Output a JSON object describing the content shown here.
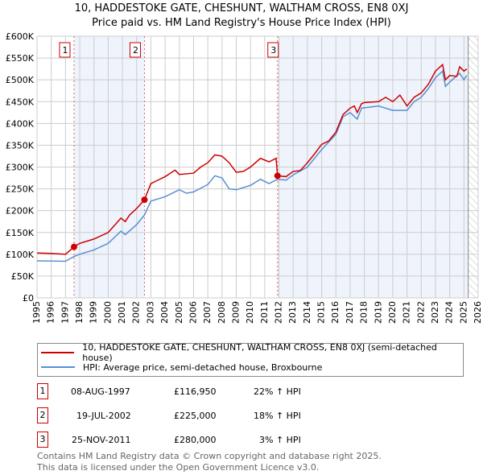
{
  "title_line1": "10, HADDESTOKE GATE, CHESHUNT, WALTHAM CROSS, EN8 0XJ",
  "title_line2": "Price paid vs. HM Land Registry's House Price Index (HPI)",
  "chart_data": {
    "type": "line",
    "xlim": [
      1995,
      2026
    ],
    "ylim": [
      0,
      600000
    ],
    "x_ticks": [
      "1995",
      "1996",
      "1997",
      "1998",
      "1999",
      "2000",
      "2001",
      "2002",
      "2003",
      "2004",
      "2005",
      "2006",
      "2007",
      "2008",
      "2009",
      "2010",
      "2011",
      "2012",
      "2013",
      "2014",
      "2015",
      "2016",
      "2017",
      "2018",
      "2019",
      "2020",
      "2021",
      "2022",
      "2023",
      "2024",
      "2025",
      "2026"
    ],
    "y_ticks": [
      {
        "v": 0,
        "label": "£0"
      },
      {
        "v": 50000,
        "label": "£50K"
      },
      {
        "v": 100000,
        "label": "£100K"
      },
      {
        "v": 150000,
        "label": "£150K"
      },
      {
        "v": 200000,
        "label": "£200K"
      },
      {
        "v": 250000,
        "label": "£250K"
      },
      {
        "v": 300000,
        "label": "£300K"
      },
      {
        "v": 350000,
        "label": "£350K"
      },
      {
        "v": 400000,
        "label": "£400K"
      },
      {
        "v": 450000,
        "label": "£450K"
      },
      {
        "v": 500000,
        "label": "£500K"
      },
      {
        "v": 550000,
        "label": "£550K"
      },
      {
        "v": 600000,
        "label": "£600K"
      }
    ],
    "grid": true,
    "future_hatch_from": 2025.3,
    "series": [
      {
        "name": "10, HADDESTOKE GATE, CHESHUNT, WALTHAM CROSS, EN8 0XJ (semi-detached house)",
        "color": "#cc0000",
        "x": [
          1995,
          1996,
          1997,
          1997.6,
          1998,
          1999,
          2000,
          2000.9,
          2001.2,
          2001.5,
          2002,
          2002.55,
          2003,
          2003.5,
          2004,
          2004.7,
          2005,
          2006,
          2006.5,
          2007,
          2007.5,
          2008,
          2008.5,
          2009,
          2009.5,
          2010,
          2010.7,
          2011.3,
          2011.8,
          2011.9,
          2012.5,
          2013,
          2013.5,
          2014,
          2014.5,
          2015,
          2015.5,
          2016,
          2016.5,
          2017,
          2017.3,
          2017.5,
          2017.8,
          2018,
          2019,
          2019.5,
          2020,
          2020.5,
          2021,
          2021.5,
          2022,
          2022.5,
          2023,
          2023.5,
          2023.7,
          2024,
          2024.5,
          2024.7,
          2025,
          2025.2
        ],
        "y": [
          103000,
          102000,
          100000,
          116950,
          125000,
          135000,
          150000,
          183000,
          175000,
          190000,
          205000,
          225000,
          262000,
          270000,
          278000,
          293000,
          283000,
          286000,
          300000,
          310000,
          328000,
          325000,
          310000,
          288000,
          290000,
          300000,
          320000,
          312000,
          320000,
          280000,
          278000,
          290000,
          292000,
          310000,
          330000,
          352000,
          360000,
          380000,
          420000,
          435000,
          440000,
          425000,
          445000,
          448000,
          450000,
          460000,
          450000,
          465000,
          440000,
          460000,
          470000,
          490000,
          520000,
          535000,
          500000,
          510000,
          508000,
          530000,
          520000,
          525000
        ]
      },
      {
        "name": "HPI: Average price, semi-detached house, Broxbourne",
        "color": "#5b8fd0",
        "x": [
          1995,
          1997,
          1997.6,
          1998,
          1999,
          2000,
          2000.9,
          2001.2,
          2002,
          2002.55,
          2003,
          2004,
          2005,
          2005.5,
          2006,
          2007,
          2007.5,
          2008,
          2008.5,
          2009,
          2010,
          2010.7,
          2011.3,
          2011.9,
          2012.5,
          2013,
          2014,
          2015,
          2016,
          2016.5,
          2017,
          2017.5,
          2017.8,
          2019,
          2020,
          2021,
          2021.5,
          2022,
          2022.5,
          2023,
          2023.5,
          2023.7,
          2024,
          2024.7,
          2025,
          2025.2
        ],
        "y": [
          85000,
          84000,
          95000,
          100000,
          110000,
          125000,
          153000,
          145000,
          168000,
          190000,
          222000,
          232000,
          248000,
          240000,
          243000,
          260000,
          280000,
          275000,
          250000,
          248000,
          258000,
          272000,
          262000,
          272000,
          270000,
          282000,
          300000,
          340000,
          375000,
          415000,
          425000,
          410000,
          435000,
          440000,
          430000,
          430000,
          450000,
          460000,
          480000,
          505000,
          520000,
          485000,
          495000,
          515000,
          500000,
          510000
        ]
      }
    ],
    "sales": [
      {
        "id": "1",
        "x": 1997.6,
        "y": 116950,
        "date": "08-AUG-1997",
        "price": "£116,950",
        "hpi": "22% ↑ HPI"
      },
      {
        "id": "2",
        "x": 2002.55,
        "y": 225000,
        "date": "19-JUL-2002",
        "price": "£225,000",
        "hpi": "18% ↑ HPI"
      },
      {
        "id": "3",
        "x": 2011.9,
        "y": 280000,
        "date": "25-NOV-2011",
        "price": "£280,000",
        "hpi": "3% ↑ HPI"
      }
    ]
  },
  "footer_line1": "Contains HM Land Registry data © Crown copyright and database right 2025.",
  "footer_line2": "This data is licensed under the Open Government Licence v3.0."
}
